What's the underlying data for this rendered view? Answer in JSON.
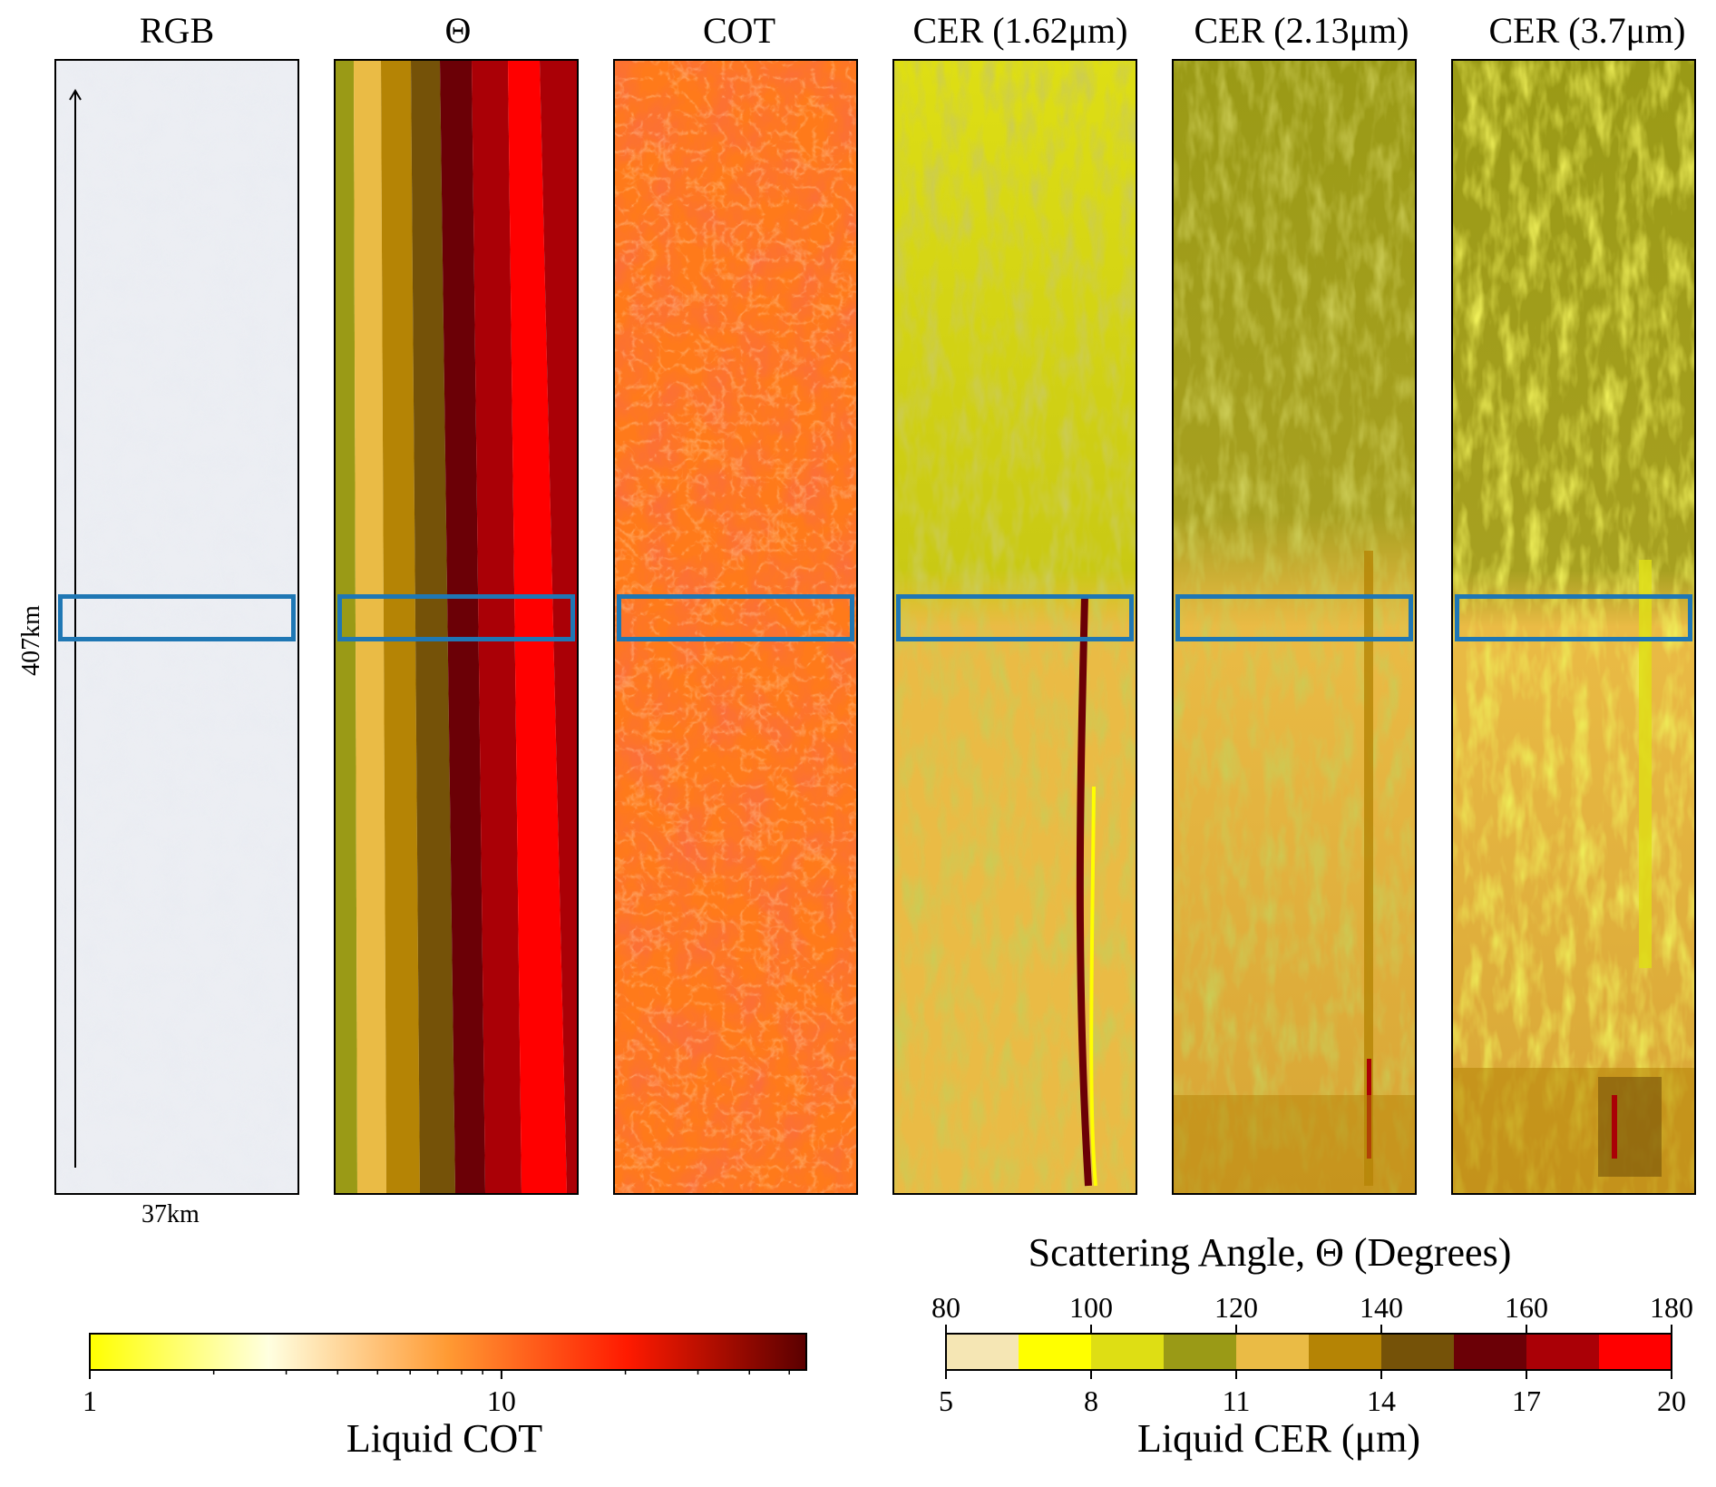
{
  "panels": [
    {
      "title": "RGB"
    },
    {
      "title": "Θ"
    },
    {
      "title": "COT"
    },
    {
      "title": "CER (1.62μm)"
    },
    {
      "title": "CER (2.13μm)"
    },
    {
      "title": "CER (3.7μm)"
    }
  ],
  "scale": {
    "along_track": "407km",
    "cross_track": "37km"
  },
  "colors": {
    "highlight_box": "#1f77b4"
  },
  "chart_data": [
    {
      "type": "heatmap",
      "panel_titles": [
        "RGB",
        "Θ",
        "COT",
        "CER (1.62μm)",
        "CER (2.13μm)",
        "CER (3.7μm)"
      ],
      "highlight_box": true
    },
    {
      "type": "colorbar",
      "label": "Liquid COT",
      "scale": "log",
      "range": [
        1,
        55
      ],
      "ticks": [
        1,
        10
      ],
      "colormap": [
        "#ffff00",
        "#ffffe0",
        "#ff9a33",
        "#ff1a00",
        "#5a0000"
      ]
    },
    {
      "type": "colorbar",
      "top_label": "Scattering Angle, Θ (Degrees)",
      "top_ticks": [
        80,
        100,
        120,
        140,
        160,
        180
      ],
      "top_range": [
        80,
        180
      ],
      "label": "Liquid CER (μm)",
      "bottom_ticks": [
        5,
        8,
        11,
        14,
        17,
        20
      ],
      "bottom_range": [
        5,
        20
      ],
      "classes": [
        "#f5e6b4",
        "#ffff00",
        "#dede14",
        "#9a9a16",
        "#eabb45",
        "#b58405",
        "#755208",
        "#6b0006",
        "#aa0006",
        "#ff0000"
      ]
    }
  ]
}
